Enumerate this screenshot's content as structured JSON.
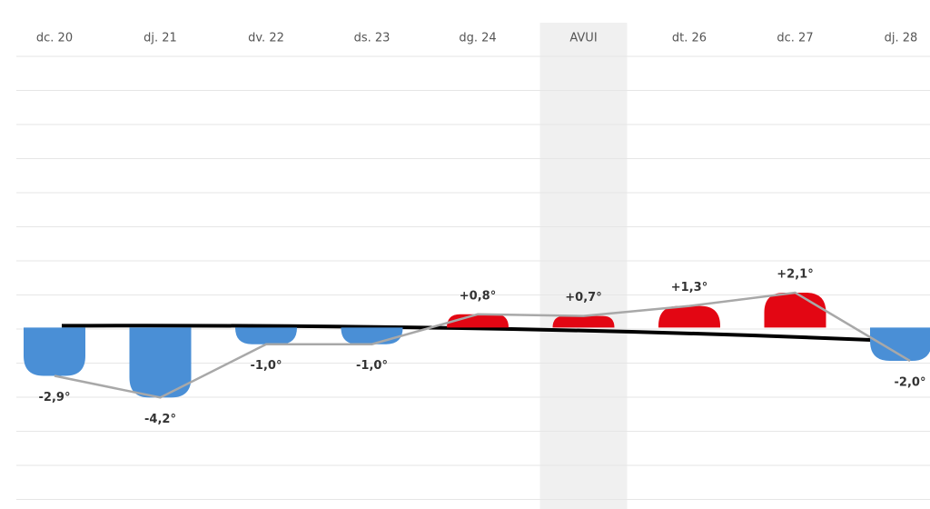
{
  "chart_data": {
    "type": "bar",
    "categories": [
      "dc. 20",
      "dj. 21",
      "dv. 22",
      "ds. 23",
      "dg. 24",
      "AVUI",
      "dt. 26",
      "dc. 27",
      "dj. 28"
    ],
    "values": [
      -2.9,
      -4.2,
      -1.0,
      -1.0,
      0.8,
      0.7,
      1.3,
      2.1,
      -2.0
    ],
    "value_labels": [
      "-2,9°",
      "-4,2°",
      "-1,0°",
      "-1,0°",
      "+0,8°",
      "+0,7°",
      "+1,3°",
      "+2,1°",
      "-2,0°"
    ],
    "colors": {
      "negative": "#4a8fd6",
      "positive": "#e30613",
      "line": "#a8a8a8"
    },
    "highlight_category": 5,
    "ylim": [
      -10.9,
      16.3
    ],
    "grid": true
  }
}
